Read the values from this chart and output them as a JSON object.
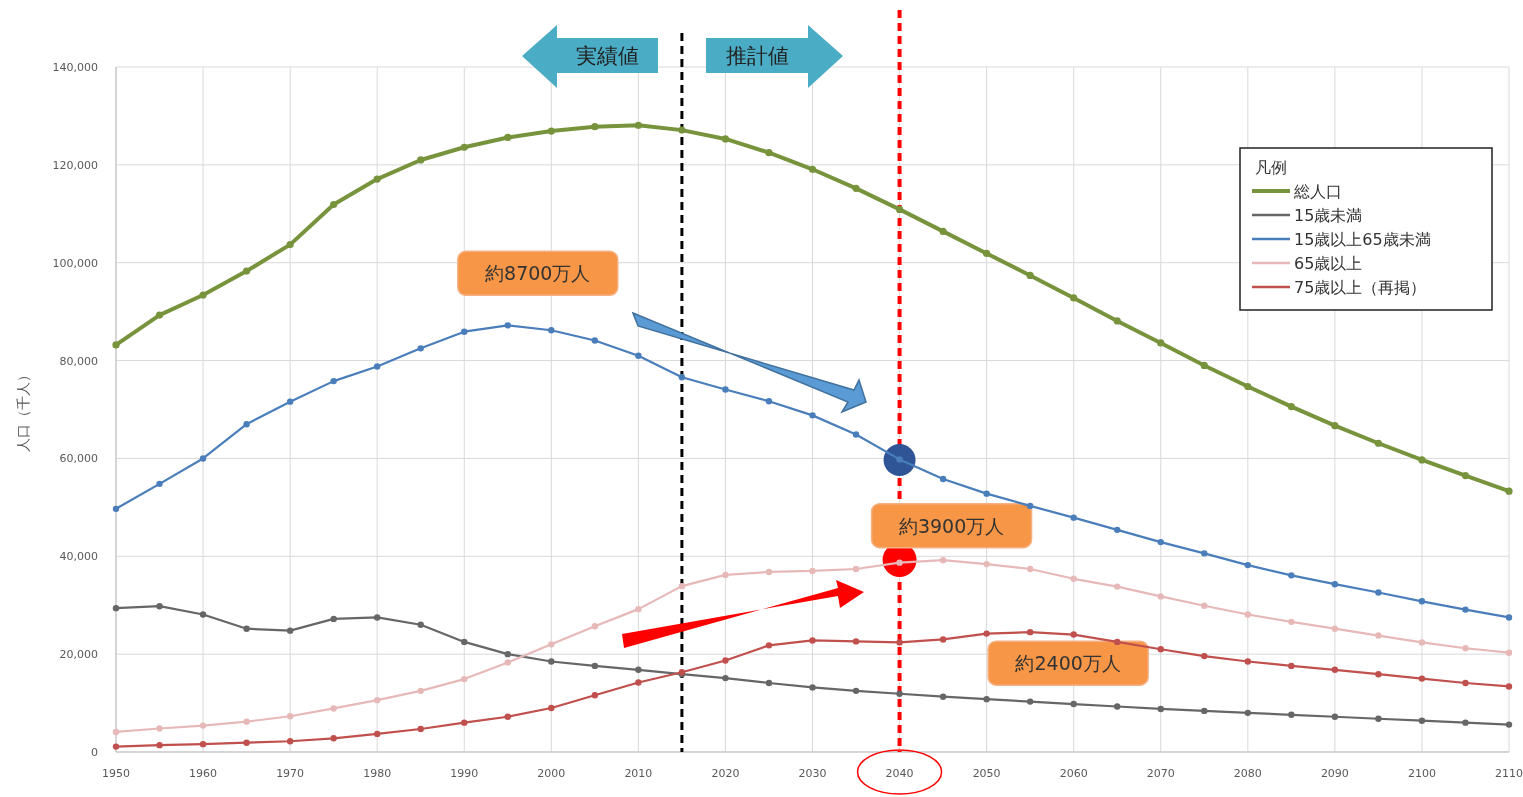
{
  "chart_data": {
    "type": "line",
    "x": [
      1950,
      1955,
      1960,
      1965,
      1970,
      1975,
      1980,
      1985,
      1990,
      1995,
      2000,
      2005,
      2010,
      2015,
      2020,
      2025,
      2030,
      2035,
      2040,
      2045,
      2050,
      2055,
      2060,
      2065,
      2070,
      2075,
      2080,
      2085,
      2090,
      2095,
      2100,
      2105,
      2110
    ],
    "series": [
      {
        "name": "総人口",
        "color": "#77933c",
        "values": [
          83200,
          89300,
          93400,
          98300,
          103700,
          111900,
          117100,
          121000,
          123600,
          125600,
          126900,
          127800,
          128100,
          127100,
          125300,
          122500,
          119100,
          115200,
          110900,
          106400,
          101900,
          97400,
          92800,
          88100,
          83600,
          79000,
          74700,
          70600,
          66700,
          63100,
          59700,
          56500,
          53300
        ]
      },
      {
        "name": "15歳未満",
        "color": "#666666",
        "values": [
          29400,
          29800,
          28100,
          25200,
          24800,
          27200,
          27500,
          26000,
          22500,
          20000,
          18500,
          17600,
          16800,
          15900,
          15100,
          14100,
          13200,
          12500,
          11900,
          11300,
          10800,
          10300,
          9800,
          9300,
          8800,
          8400,
          8000,
          7600,
          7200,
          6800,
          6400,
          6000,
          5600
        ]
      },
      {
        "name": "15歳以上65歳未満",
        "color": "#4a7ebb",
        "values": [
          49700,
          54800,
          60000,
          67000,
          71600,
          75800,
          78800,
          82500,
          85900,
          87200,
          86200,
          84100,
          81000,
          76600,
          74100,
          71700,
          68800,
          64900,
          59800,
          55800,
          52800,
          50300,
          47900,
          45400,
          42900,
          40600,
          38200,
          36100,
          34300,
          32600,
          30800,
          29100,
          27500
        ]
      },
      {
        "name": "65歳以上",
        "color": "#e6b9b8",
        "values": [
          4100,
          4800,
          5400,
          6200,
          7300,
          8900,
          10600,
          12500,
          14900,
          18300,
          22000,
          25700,
          29200,
          33900,
          36200,
          36800,
          37000,
          37400,
          38700,
          39200,
          38400,
          37400,
          35400,
          33800,
          31800,
          29900,
          28100,
          26600,
          25200,
          23800,
          22400,
          21200,
          20300
        ]
      },
      {
        "name": "75歳以上（再掲）",
        "color": "#c0504d",
        "values": [
          1100,
          1400,
          1600,
          1900,
          2200,
          2800,
          3700,
          4700,
          6000,
          7200,
          9000,
          11600,
          14200,
          16300,
          18700,
          21800,
          22800,
          22600,
          22400,
          23000,
          24200,
          24500,
          24000,
          22500,
          21000,
          19600,
          18500,
          17600,
          16800,
          15900,
          15000,
          14100,
          13400
        ]
      }
    ],
    "ylabel": "人口（千人）",
    "xlim": [
      1950,
      2110
    ],
    "xticks": [
      1950,
      1960,
      1970,
      1980,
      1990,
      2000,
      2010,
      2020,
      2030,
      2040,
      2050,
      2060,
      2070,
      2080,
      2090,
      2100,
      2110
    ],
    "ylim": [
      0,
      140000
    ],
    "yticks": [
      0,
      {
        "value": 20000,
        "label": "20,000"
      },
      {
        "value": 40000,
        "label": "40,000"
      },
      {
        "value": 60000,
        "label": "60,000"
      },
      {
        "value": 80000,
        "label": "80,000"
      },
      {
        "value": 100000,
        "label": "100,000"
      },
      {
        "value": 120000,
        "label": "120,000"
      },
      {
        "value": 140000,
        "label": "140,000"
      }
    ],
    "grid": true,
    "legend": "top right",
    "legend_title": "凡例",
    "marker": "circle",
    "line_style": "solid",
    "ref_lines": [
      {
        "axis": "x",
        "value": 2015,
        "color": "#000000",
        "line_style": "dashed"
      },
      {
        "axis": "x",
        "value": 2040,
        "color": "#ff0000",
        "line_style": "dashed"
      }
    ],
    "annotations": [
      {
        "text": "約8700万人",
        "x": 1995,
        "y": 87200
      },
      {
        "text": "約3900万人",
        "x": 2040,
        "y": 38700
      },
      {
        "text": "約2400万人",
        "x": 2055,
        "y": 24500
      },
      "実績値",
      "推計値"
    ]
  }
}
